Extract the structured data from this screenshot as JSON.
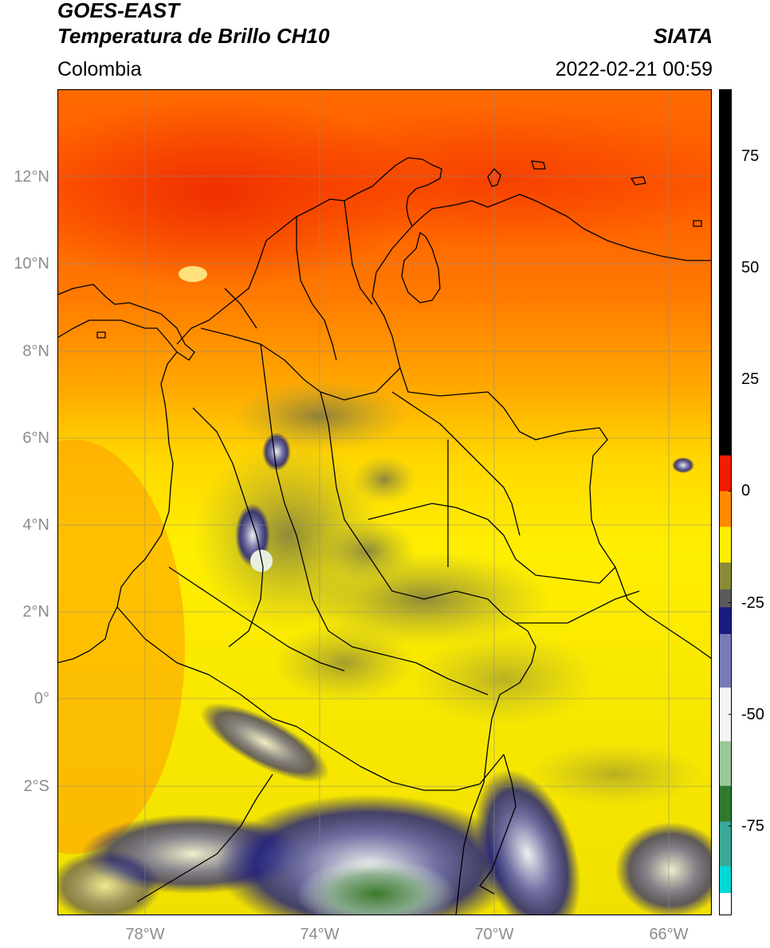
{
  "header": {
    "satellite": "GOES-EAST",
    "product": "Temperatura de Brillo CH10",
    "brand": "SIATA",
    "region": "Colombia",
    "timestamp": "2022-02-21 00:59"
  },
  "map": {
    "lat_ticks": [
      "12°N",
      "10°N",
      "8°N",
      "6°N",
      "4°N",
      "2°N",
      "0°",
      "2°S"
    ],
    "lon_ticks": [
      "78°W",
      "74°W",
      "70°W",
      "66°W"
    ]
  },
  "colorbar": {
    "ticks": [
      "75",
      "50",
      "25",
      "0",
      "-25",
      "-50",
      "-75"
    ],
    "colors": {
      "hot": "#000000",
      "red": "#ee1c00",
      "orange": "#ff8a00",
      "yellow": "#ffee00",
      "olive": "#8a8a3a",
      "gray": "#5a5a5a",
      "navy": "#1a1a80",
      "white": "#f4f4f4",
      "green": "#2f7a2f",
      "teal": "#00d8d8"
    }
  }
}
